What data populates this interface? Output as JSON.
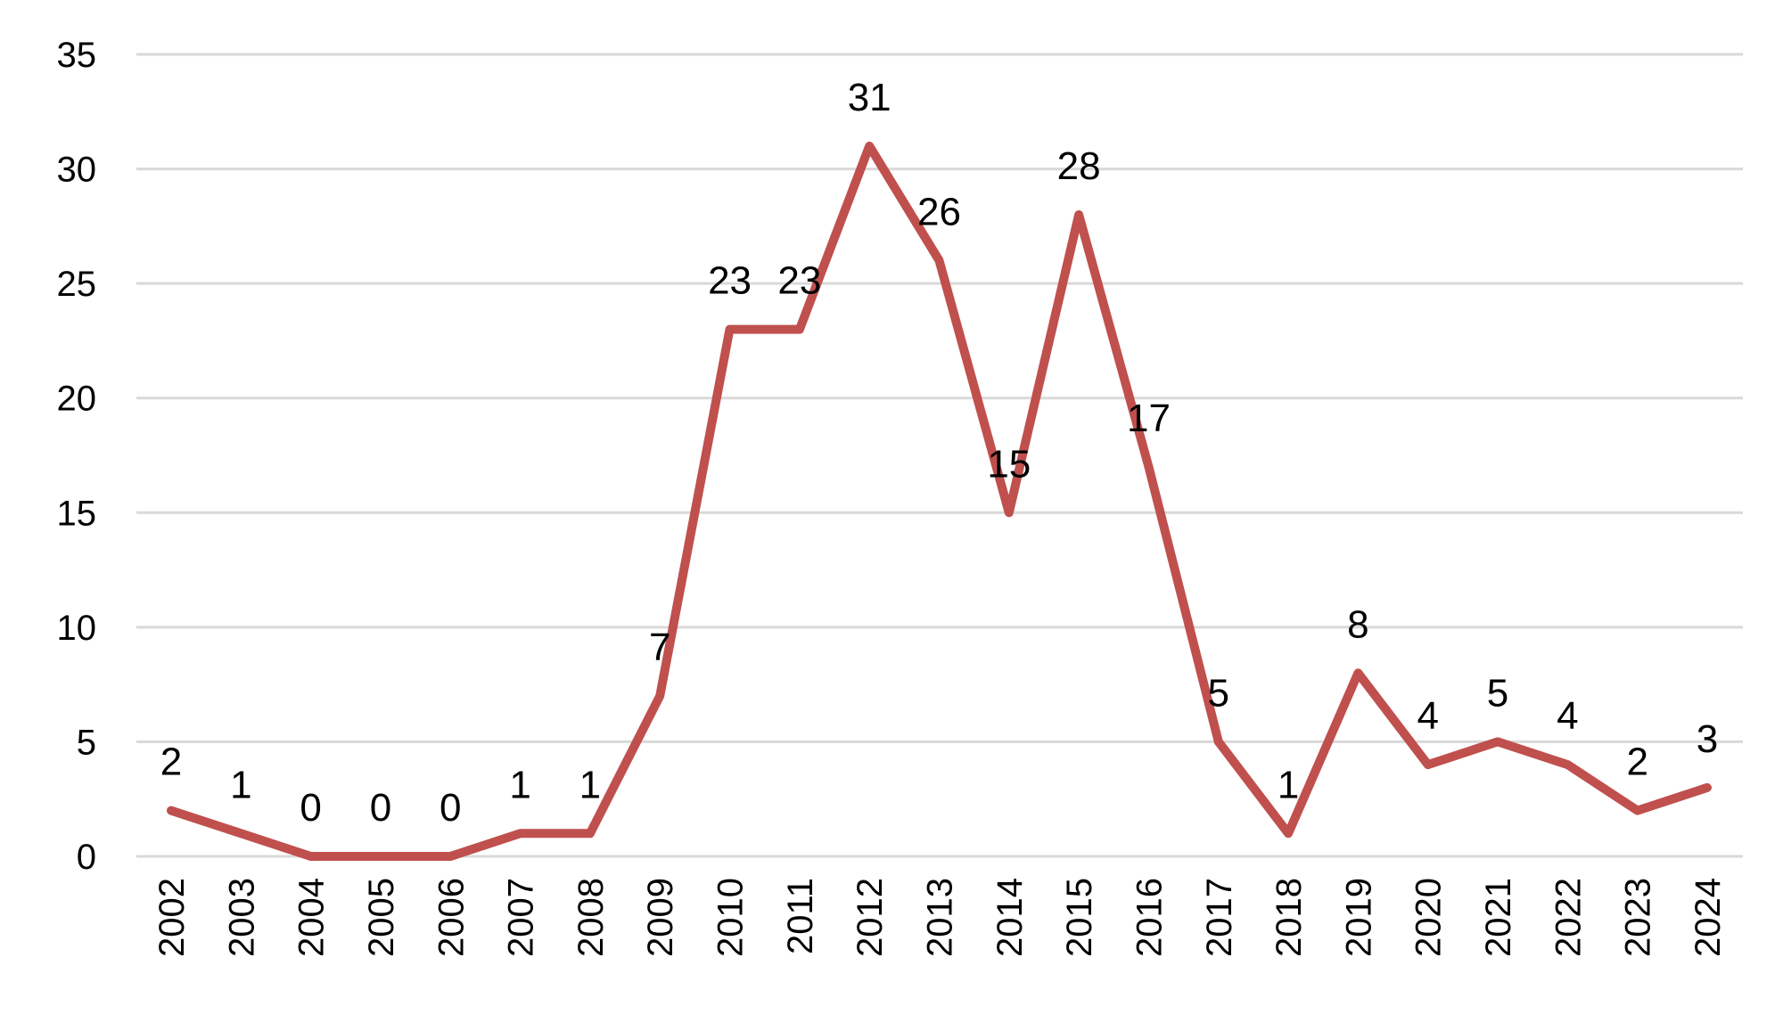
{
  "chart_data": {
    "type": "line",
    "title": "",
    "xlabel": "",
    "ylabel": "",
    "categories": [
      "2002",
      "2003",
      "2004",
      "2005",
      "2006",
      "2007",
      "2008",
      "2009",
      "2010",
      "2011",
      "2012",
      "2013",
      "2014",
      "2015",
      "2016",
      "2017",
      "2018",
      "2019",
      "2020",
      "2021",
      "2022",
      "2023",
      "2024"
    ],
    "series": [
      {
        "values": [
          2,
          1,
          0,
          0,
          0,
          1,
          1,
          7,
          23,
          23,
          31,
          26,
          15,
          28,
          17,
          5,
          1,
          8,
          4,
          5,
          4,
          2,
          3
        ],
        "color": "#c0504d"
      }
    ],
    "ylim": [
      0,
      35
    ],
    "yticks": [
      "0",
      "5",
      "10",
      "15",
      "20",
      "25",
      "30",
      "35"
    ],
    "data_labels": true,
    "grid": true,
    "legend": "none"
  }
}
